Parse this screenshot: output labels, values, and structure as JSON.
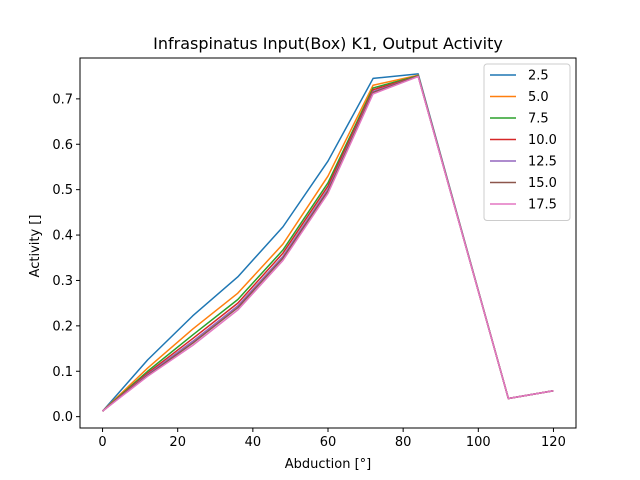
{
  "chart_data": {
    "type": "line",
    "title": "Infraspinatus Input(Box) K1, Output Activity",
    "xlabel": "Abduction [°]",
    "ylabel": "Activity []",
    "xlim": [
      -6,
      126
    ],
    "ylim": [
      -0.025,
      0.79
    ],
    "xticks": [
      0,
      20,
      40,
      60,
      80,
      100,
      120
    ],
    "yticks": [
      0.0,
      0.1,
      0.2,
      0.3,
      0.4,
      0.5,
      0.6,
      0.7
    ],
    "xtick_labels": [
      "0",
      "20",
      "40",
      "60",
      "80",
      "100",
      "120"
    ],
    "ytick_labels": [
      "0.0",
      "0.1",
      "0.2",
      "0.3",
      "0.4",
      "0.5",
      "0.6",
      "0.7"
    ],
    "grid": false,
    "legend_position": "top-right",
    "x": [
      0,
      12,
      24,
      36,
      48,
      60,
      72,
      84,
      108,
      120
    ],
    "series": [
      {
        "name": "2.5",
        "color": "#1f77b4",
        "values": [
          0.012,
          0.125,
          0.222,
          0.308,
          0.418,
          0.563,
          0.745,
          0.755,
          0.04,
          0.057
        ]
      },
      {
        "name": "5.0",
        "color": "#ff7f0e",
        "values": [
          0.012,
          0.107,
          0.193,
          0.272,
          0.38,
          0.53,
          0.73,
          0.752,
          0.04,
          0.057
        ]
      },
      {
        "name": "7.5",
        "color": "#2ca02c",
        "values": [
          0.012,
          0.1,
          0.18,
          0.258,
          0.367,
          0.515,
          0.724,
          0.751,
          0.04,
          0.057
        ]
      },
      {
        "name": "10.0",
        "color": "#d62728",
        "values": [
          0.012,
          0.096,
          0.172,
          0.25,
          0.36,
          0.508,
          0.72,
          0.75,
          0.04,
          0.057
        ]
      },
      {
        "name": "12.5",
        "color": "#9467bd",
        "values": [
          0.012,
          0.093,
          0.166,
          0.244,
          0.353,
          0.501,
          0.716,
          0.75,
          0.04,
          0.057
        ]
      },
      {
        "name": "15.0",
        "color": "#8c564b",
        "values": [
          0.012,
          0.091,
          0.162,
          0.24,
          0.349,
          0.497,
          0.714,
          0.75,
          0.04,
          0.057
        ]
      },
      {
        "name": "17.5",
        "color": "#e377c2",
        "values": [
          0.012,
          0.089,
          0.157,
          0.235,
          0.344,
          0.492,
          0.711,
          0.749,
          0.04,
          0.057
        ]
      }
    ]
  }
}
